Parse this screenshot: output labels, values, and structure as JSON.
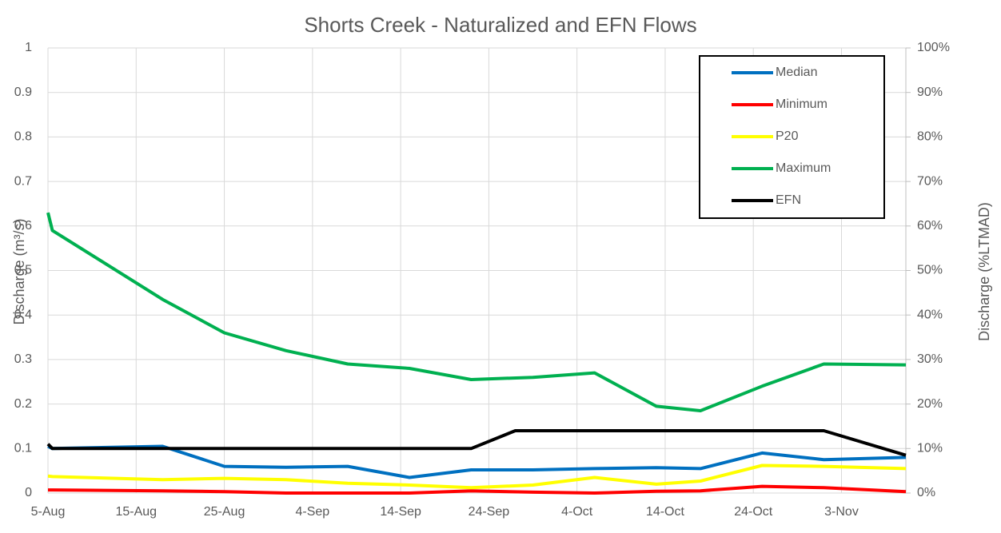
{
  "chart_data": {
    "type": "line",
    "title": "Shorts Creek - Naturalized and EFN Flows",
    "ylabel": "Discharge (m³/s)",
    "y2label": "Discharge (%LTMAD)",
    "xlim": [
      0,
      97.3
    ],
    "xticks": [
      {
        "value": 0,
        "label": "5-Aug"
      },
      {
        "value": 10,
        "label": "15-Aug"
      },
      {
        "value": 20,
        "label": "25-Aug"
      },
      {
        "value": 30,
        "label": "4-Sep"
      },
      {
        "value": 40,
        "label": "14-Sep"
      },
      {
        "value": 50,
        "label": "24-Sep"
      },
      {
        "value": 60,
        "label": "4-Oct"
      },
      {
        "value": 70,
        "label": "14-Oct"
      },
      {
        "value": 80,
        "label": "24-Oct"
      },
      {
        "value": 90,
        "label": "3-Nov"
      }
    ],
    "ylim": [
      0,
      1
    ],
    "yticks": [
      0,
      0.1,
      0.2,
      0.3,
      0.4,
      0.5,
      0.6,
      0.7,
      0.8,
      0.9,
      1
    ],
    "y2lim": [
      0,
      100
    ],
    "y2ticks": [
      {
        "value": 0,
        "label": "0%"
      },
      {
        "value": 10,
        "label": "10%"
      },
      {
        "value": 20,
        "label": "20%"
      },
      {
        "value": 30,
        "label": "30%"
      },
      {
        "value": 40,
        "label": "40%"
      },
      {
        "value": 50,
        "label": "50%"
      },
      {
        "value": 60,
        "label": "60%"
      },
      {
        "value": 70,
        "label": "70%"
      },
      {
        "value": 80,
        "label": "80%"
      },
      {
        "value": 90,
        "label": "90%"
      },
      {
        "value": 100,
        "label": "100%"
      }
    ],
    "grid": true,
    "legend": "upper right",
    "series": [
      {
        "name": "Median",
        "color": "#0070c0",
        "x": [
          0,
          0.5,
          13,
          20,
          27,
          34,
          41,
          48,
          55,
          62,
          69,
          74,
          81,
          88,
          97.3
        ],
        "values": [
          0.105,
          0.1,
          0.105,
          0.06,
          0.058,
          0.06,
          0.035,
          0.052,
          0.052,
          0.055,
          0.057,
          0.055,
          0.09,
          0.075,
          0.08
        ]
      },
      {
        "name": "Minimum",
        "color": "#ff0000",
        "x": [
          0,
          0.5,
          13,
          20,
          27,
          34,
          41,
          48,
          55,
          62,
          69,
          74,
          81,
          88,
          97.3
        ],
        "values": [
          0.007,
          0.007,
          0.005,
          0.003,
          0.0,
          0.0,
          0.0,
          0.005,
          0.002,
          0.0,
          0.004,
          0.005,
          0.015,
          0.012,
          0.003
        ]
      },
      {
        "name": "P20",
        "color": "#ffff00",
        "x": [
          0,
          0.5,
          13,
          20,
          27,
          34,
          41,
          48,
          55,
          62,
          69,
          74,
          81,
          88,
          97.3
        ],
        "values": [
          0.038,
          0.037,
          0.03,
          0.033,
          0.03,
          0.022,
          0.018,
          0.012,
          0.018,
          0.035,
          0.02,
          0.027,
          0.062,
          0.06,
          0.055
        ]
      },
      {
        "name": "Maximum",
        "color": "#00b050",
        "x": [
          0,
          0.5,
          13,
          20,
          27,
          34,
          41,
          48,
          55,
          62,
          69,
          74,
          81,
          88,
          97.3
        ],
        "values": [
          0.63,
          0.59,
          0.435,
          0.36,
          0.32,
          0.29,
          0.28,
          0.255,
          0.26,
          0.27,
          0.195,
          0.185,
          0.24,
          0.29,
          0.288
        ]
      },
      {
        "name": "EFN",
        "color": "#000000",
        "x": [
          0,
          0.5,
          48,
          53,
          88,
          97.3
        ],
        "values": [
          0.11,
          0.1,
          0.1,
          0.14,
          0.14,
          0.085
        ]
      }
    ]
  }
}
